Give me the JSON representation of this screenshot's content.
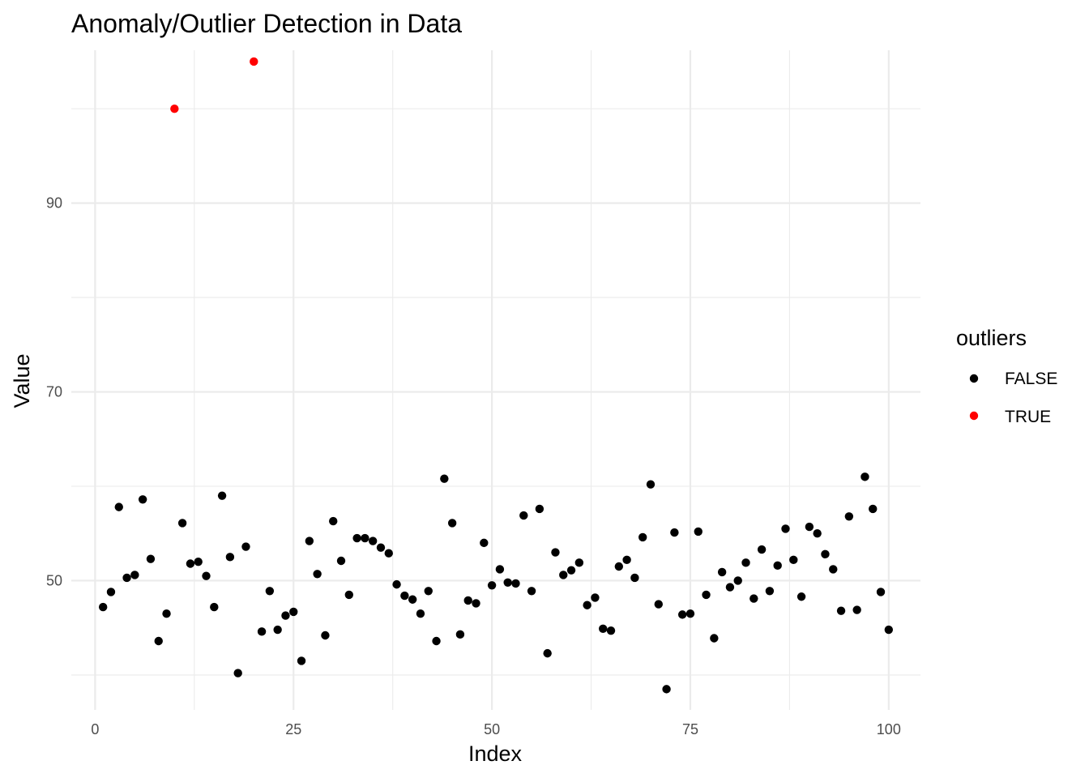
{
  "chart_data": {
    "type": "scatter",
    "title": "Anomaly/Outlier Detection in Data",
    "xlabel": "Index",
    "ylabel": "Value",
    "xlim": [
      -3,
      104
    ],
    "ylim": [
      36.3,
      106.2
    ],
    "x_ticks": [
      0,
      25,
      50,
      75,
      100
    ],
    "x_tick_labels": [
      "0",
      "25",
      "50",
      "75",
      "100"
    ],
    "y_ticks": [
      50,
      70,
      90
    ],
    "y_tick_labels": [
      "50",
      "70",
      "90"
    ],
    "grid": true,
    "legend": {
      "title": "outliers",
      "position": "right",
      "entries": [
        {
          "label": "FALSE",
          "color": "#000000"
        },
        {
          "label": "TRUE",
          "color": "#ff0000"
        }
      ]
    },
    "series": [
      {
        "name": "FALSE",
        "color": "#000000",
        "x": [
          1,
          2,
          3,
          4,
          5,
          6,
          7,
          8,
          9,
          11,
          12,
          13,
          14,
          15,
          16,
          17,
          18,
          19,
          21,
          22,
          23,
          24,
          25,
          26,
          27,
          28,
          29,
          30,
          31,
          32,
          33,
          34,
          35,
          36,
          37,
          38,
          39,
          40,
          41,
          42,
          43,
          44,
          45,
          46,
          47,
          48,
          49,
          50,
          51,
          52,
          53,
          54,
          55,
          56,
          57,
          58,
          59,
          60,
          61,
          62,
          63,
          64,
          65,
          66,
          67,
          68,
          69,
          70,
          71,
          72,
          73,
          74,
          75,
          76,
          77,
          78,
          79,
          80,
          81,
          82,
          83,
          84,
          85,
          86,
          87,
          88,
          89,
          90,
          91,
          92,
          93,
          94,
          95,
          96,
          97,
          98,
          99,
          100
        ],
        "y": [
          47.2,
          48.8,
          57.8,
          50.3,
          50.6,
          58.6,
          52.3,
          43.6,
          46.5,
          56.1,
          51.8,
          52.0,
          50.5,
          47.2,
          59.0,
          52.5,
          40.2,
          53.6,
          44.6,
          48.9,
          44.8,
          46.3,
          46.7,
          41.5,
          54.2,
          50.7,
          44.2,
          56.3,
          52.1,
          48.5,
          54.5,
          54.5,
          54.2,
          53.5,
          52.9,
          49.6,
          48.4,
          48.0,
          46.5,
          48.9,
          43.6,
          60.8,
          56.1,
          44.3,
          47.9,
          47.6,
          54.0,
          49.5,
          51.2,
          49.8,
          49.7,
          56.9,
          48.9,
          57.6,
          42.3,
          53.0,
          50.6,
          51.1,
          51.9,
          47.4,
          48.2,
          44.9,
          44.7,
          51.5,
          52.2,
          50.3,
          54.6,
          60.2,
          47.5,
          38.5,
          55.1,
          46.4,
          46.5,
          55.2,
          48.5,
          43.9,
          50.9,
          49.3,
          50.0,
          51.9,
          48.1,
          53.3,
          48.9,
          51.6,
          55.5,
          52.2,
          48.3,
          55.7,
          55.0,
          52.8,
          51.2,
          46.8,
          56.8,
          46.9,
          61.0,
          57.6,
          48.8,
          44.8
        ]
      },
      {
        "name": "TRUE",
        "color": "#ff0000",
        "x": [
          10,
          20
        ],
        "y": [
          100.0,
          105.0
        ]
      }
    ]
  }
}
